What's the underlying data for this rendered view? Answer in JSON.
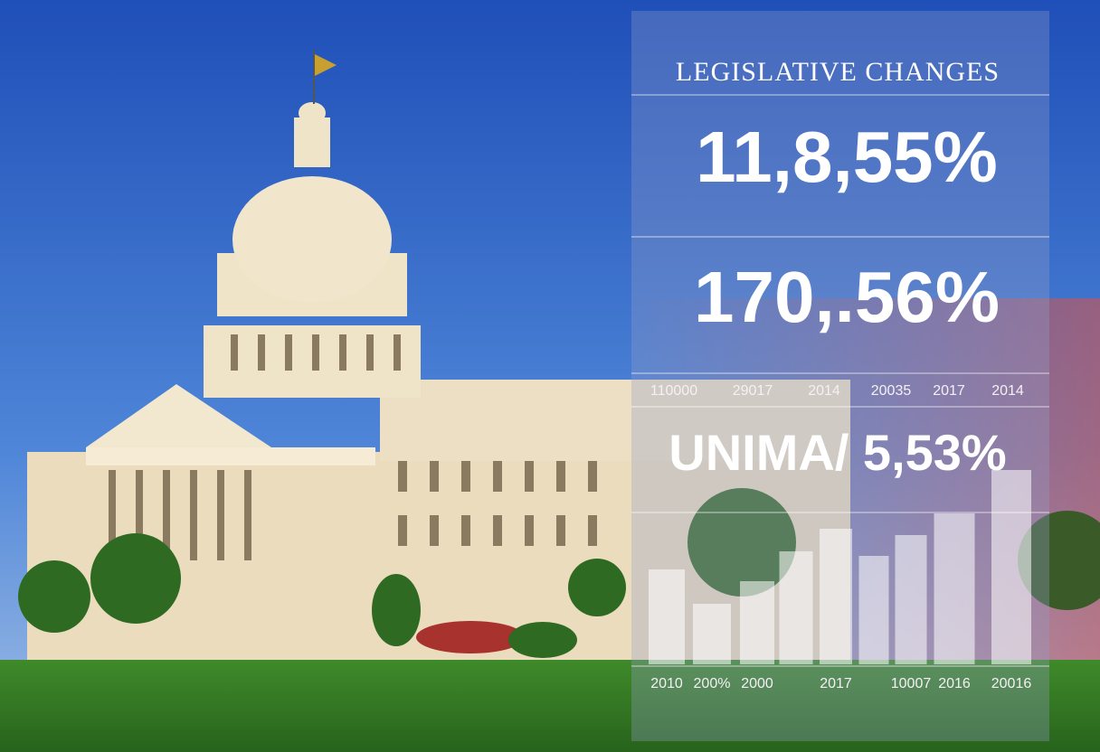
{
  "panel": {
    "title": "LEGISLATIVE CHANGES",
    "figures": [
      "11,8,55%",
      "170,.56%"
    ],
    "labels_row": [
      "110000",
      "29017",
      "2014",
      "20035",
      "2017",
      "2014"
    ],
    "headline": "UNIMA/ 5,53%"
  },
  "chart_data": {
    "type": "bar",
    "categories": [
      "2010",
      "200%",
      "2000",
      null,
      "2017",
      null,
      "10007",
      "2016",
      "20016"
    ],
    "values": [
      105,
      67,
      92,
      125,
      150,
      120,
      143,
      167,
      215
    ],
    "color": "rgba(255,255,255,0.55)"
  }
}
